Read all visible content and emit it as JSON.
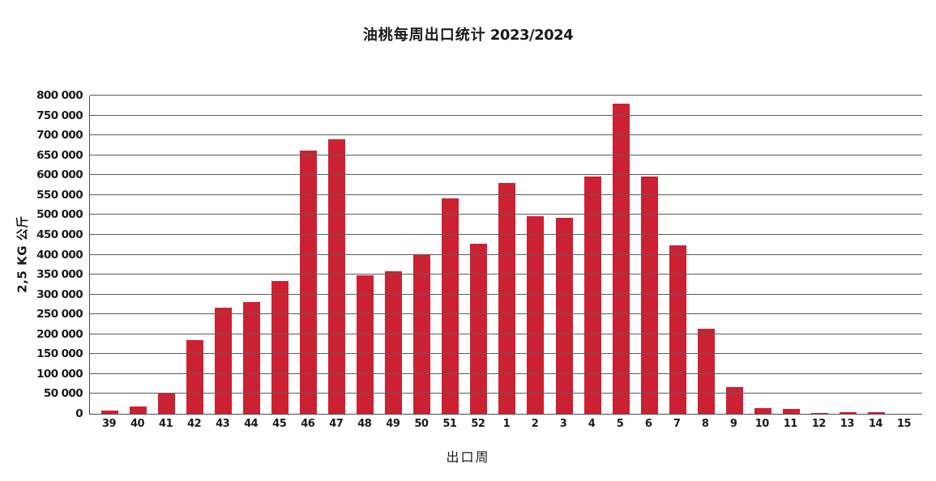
{
  "title": {
    "prefix": "油桃每周出口统计",
    "season": "2023/2024"
  },
  "colors": {
    "bar": "#cc2132",
    "gridline": "#5c5c5c",
    "axis": "#4d4d4d",
    "text": "#1a1a1a"
  },
  "chart_data": {
    "type": "bar",
    "title": "油桃每周出口统计 2023/2024",
    "xlabel": "出口周",
    "ylabel": "2,5 KG 公斤",
    "categories": [
      "39",
      "40",
      "41",
      "42",
      "43",
      "44",
      "45",
      "46",
      "47",
      "48",
      "49",
      "50",
      "51",
      "52",
      "1",
      "2",
      "3",
      "4",
      "5",
      "6",
      "7",
      "8",
      "9",
      "10",
      "11",
      "12",
      "13",
      "14",
      "15"
    ],
    "values": [
      8000,
      17500,
      50000,
      186000,
      266000,
      280000,
      333000,
      661000,
      690000,
      349000,
      359000,
      402000,
      541000,
      427000,
      581000,
      497000,
      493000,
      597000,
      780000,
      596000,
      424000,
      214000,
      68000,
      14000,
      12000,
      3000,
      3500,
      4000,
      0
    ],
    "ylim": [
      0,
      800000
    ],
    "ytick_step": 50000,
    "ytick_labels": [
      "800 000",
      "750 000",
      "700 000",
      "650 000",
      "600 000",
      "550 000",
      "500 000",
      "450 000",
      "400 000",
      "350 000",
      "300 000",
      "250 000",
      "200 000",
      "150 000",
      "100 000",
      "50 000",
      "0"
    ],
    "ytick_values": [
      800000,
      750000,
      700000,
      650000,
      600000,
      550000,
      500000,
      450000,
      400000,
      350000,
      300000,
      250000,
      200000,
      150000,
      100000,
      50000,
      0
    ],
    "grid": true,
    "legend": "none",
    "bar_color": "#cc2132"
  }
}
